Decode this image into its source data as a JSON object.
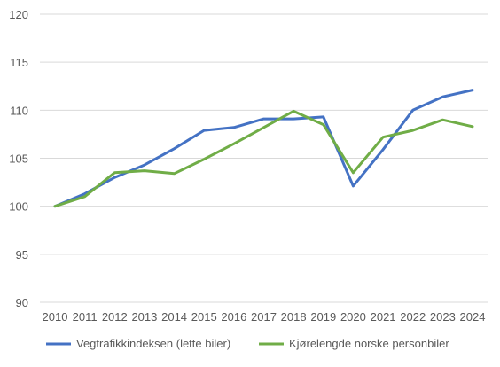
{
  "chart_data": {
    "type": "line",
    "title": "",
    "xlabel": "",
    "ylabel": "",
    "x": [
      "2010",
      "2011",
      "2012",
      "2013",
      "2014",
      "2015",
      "2016",
      "2017",
      "2018",
      "2019",
      "2020",
      "2021",
      "2022",
      "2023",
      "2024"
    ],
    "ylim": [
      90,
      120
    ],
    "yticks": [
      90,
      95,
      100,
      105,
      110,
      115,
      120
    ],
    "grid": true,
    "legend": "bottom",
    "series": [
      {
        "name": "Vegtrafikkindeksen (lette biler)",
        "color": "#4472C4",
        "values": [
          100,
          101.3,
          103.0,
          104.3,
          106.0,
          107.9,
          108.2,
          109.1,
          109.1,
          109.3,
          102.1,
          105.9,
          110.0,
          111.4,
          112.1
        ]
      },
      {
        "name": "Kjørelengde norske personbiler",
        "color": "#70AD47",
        "values": [
          100,
          101.0,
          103.5,
          103.7,
          103.4,
          104.9,
          106.5,
          108.2,
          109.9,
          108.5,
          103.5,
          107.2,
          107.9,
          109.0,
          108.3
        ]
      }
    ]
  }
}
